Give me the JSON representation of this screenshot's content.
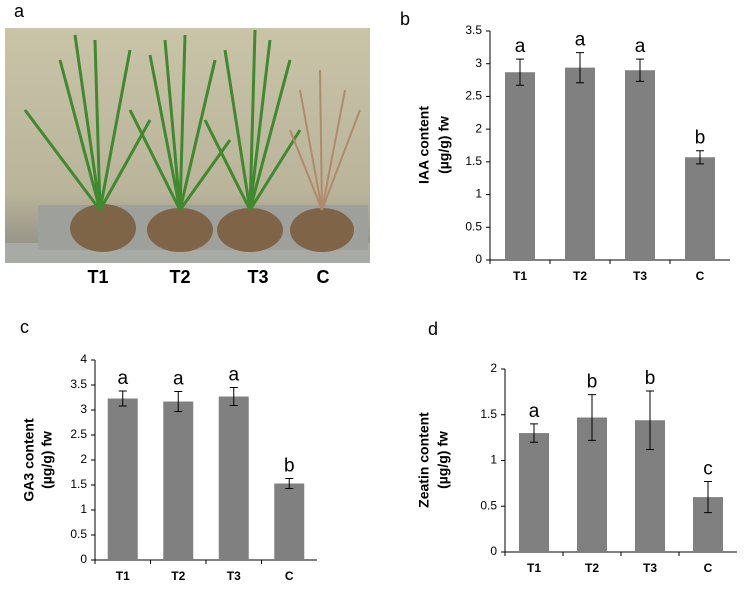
{
  "photo": {
    "label": "a",
    "labels": [
      "T1",
      "T2",
      "T3",
      "C"
    ]
  },
  "chart_data": [
    {
      "type": "bar",
      "label": "b",
      "ylabel": [
        "IAA  content",
        "(µg/g) fw"
      ],
      "color": "#808080",
      "categories": [
        "T1",
        "T2",
        "T3",
        "C"
      ],
      "values": [
        2.87,
        2.94,
        2.9,
        1.57
      ],
      "errors": [
        0.2,
        0.23,
        0.17,
        0.1
      ],
      "annotations": [
        "a",
        "a",
        "a",
        "b"
      ],
      "ylim": [
        0,
        3.5
      ],
      "yticks": [
        0,
        0.5,
        1,
        1.5,
        2,
        2.5,
        3,
        3.5
      ]
    },
    {
      "type": "bar",
      "label": "c",
      "ylabel": [
        "GA3 content",
        "(µg/g) fw"
      ],
      "color": "#808080",
      "categories": [
        "T1",
        "T2",
        "T3",
        "C"
      ],
      "values": [
        3.23,
        3.17,
        3.27,
        1.53
      ],
      "errors": [
        0.15,
        0.2,
        0.18,
        0.1
      ],
      "annotations": [
        "a",
        "a",
        "a",
        "b"
      ],
      "ylim": [
        0,
        4
      ],
      "yticks": [
        0,
        0.5,
        1,
        1.5,
        2,
        2.5,
        3,
        3.5,
        4
      ]
    },
    {
      "type": "bar",
      "label": "d",
      "ylabel": [
        "Zeatin content",
        "(µg/g) fw"
      ],
      "color": "#808080",
      "categories": [
        "T1",
        "T2",
        "T3",
        "C"
      ],
      "values": [
        1.3,
        1.47,
        1.44,
        0.6
      ],
      "errors": [
        0.1,
        0.25,
        0.32,
        0.17
      ],
      "annotations": [
        "a",
        "b",
        "b",
        "c"
      ],
      "ylim": [
        0,
        2
      ],
      "yticks": [
        0,
        0.5,
        1,
        1.5,
        2
      ]
    }
  ]
}
